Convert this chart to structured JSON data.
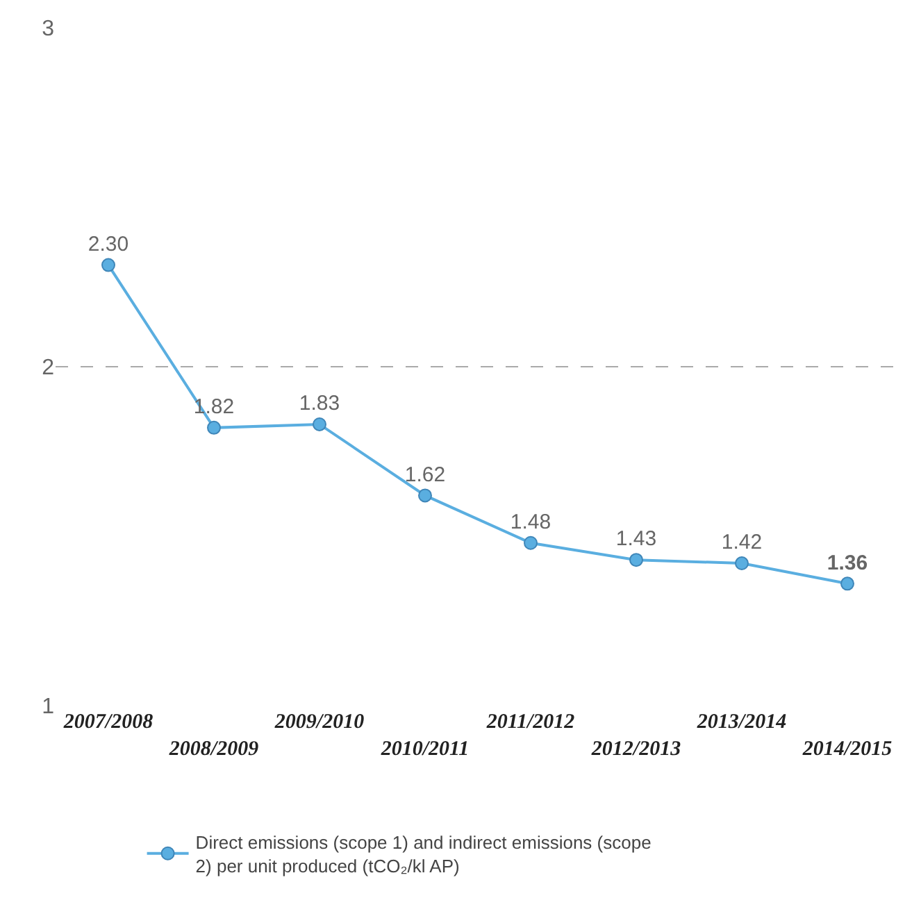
{
  "chart_data": {
    "type": "line",
    "categories": [
      "2007/2008",
      "2008/2009",
      "2009/2010",
      "2010/2011",
      "2011/2012",
      "2012/2013",
      "2013/2014",
      "2014/2015"
    ],
    "series": [
      {
        "name": "Direct emissions (scope 1) and indirect emissions (scope 2) per unit produced (tCO₂/kl AP)",
        "color": "#5aaee0",
        "values": [
          2.3,
          1.82,
          1.83,
          1.62,
          1.48,
          1.43,
          1.42,
          1.36
        ],
        "value_labels": [
          "2.30",
          "1.82",
          "1.83",
          "1.62",
          "1.48",
          "1.43",
          "1.42",
          "1.36"
        ]
      }
    ],
    "ylim": [
      1,
      3
    ],
    "yticks": [
      1,
      2,
      3
    ],
    "grid": "y",
    "legend": "bottom",
    "marker": "circle",
    "line_style": "solid"
  }
}
